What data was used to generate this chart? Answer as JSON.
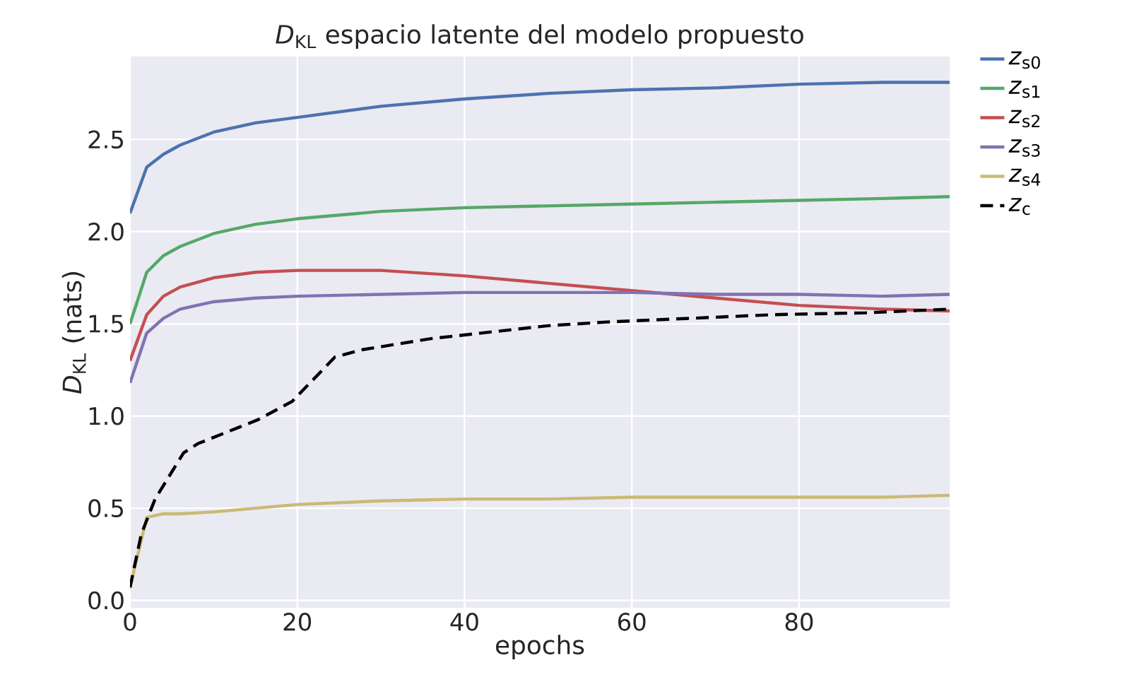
{
  "chart_data": {
    "type": "line",
    "title": "*D*$_{KL}$ espacio latente del modelo propuesto",
    "xlabel": "epochs",
    "ylabel": "*D*$_{KL}$ (nats)",
    "xlim": [
      0,
      98
    ],
    "ylim": [
      -0.04,
      2.95
    ],
    "xticks": [
      0,
      20,
      40,
      60,
      80
    ],
    "yticks": [
      {
        "value": 0,
        "label": "0.0"
      },
      0.5,
      {
        "value": 1,
        "label": "1.0"
      },
      1.5,
      {
        "value": 2,
        "label": "2.0"
      },
      2.5
    ],
    "grid": true,
    "legend": "right",
    "series": [
      {
        "name": "*z*$_{s0}$",
        "color": "#4c72b0",
        "line_style": "solid",
        "x": [
          0,
          2,
          4,
          6,
          10,
          15,
          20,
          30,
          40,
          50,
          60,
          70,
          80,
          90,
          98
        ],
        "values": [
          2.1,
          2.35,
          2.42,
          2.47,
          2.54,
          2.59,
          2.62,
          2.68,
          2.72,
          2.75,
          2.77,
          2.78,
          2.8,
          2.81,
          2.81
        ]
      },
      {
        "name": "*z*$_{s1}$",
        "color": "#55a868",
        "line_style": "solid",
        "x": [
          0,
          2,
          4,
          6,
          10,
          15,
          20,
          30,
          40,
          50,
          60,
          70,
          80,
          90,
          98
        ],
        "values": [
          1.5,
          1.78,
          1.87,
          1.92,
          1.99,
          2.04,
          2.07,
          2.11,
          2.13,
          2.14,
          2.15,
          2.16,
          2.17,
          2.18,
          2.19
        ]
      },
      {
        "name": "*z*$_{s2}$",
        "color": "#c44e52",
        "line_style": "solid",
        "x": [
          0,
          2,
          4,
          6,
          10,
          15,
          20,
          30,
          40,
          50,
          60,
          70,
          80,
          90,
          98
        ],
        "values": [
          1.3,
          1.55,
          1.65,
          1.7,
          1.75,
          1.78,
          1.79,
          1.79,
          1.76,
          1.72,
          1.68,
          1.64,
          1.6,
          1.58,
          1.57
        ]
      },
      {
        "name": "*z*$_{s3}$",
        "color": "#8172b2",
        "line_style": "solid",
        "x": [
          0,
          2,
          4,
          6,
          10,
          15,
          20,
          30,
          40,
          50,
          60,
          70,
          80,
          90,
          98
        ],
        "values": [
          1.18,
          1.45,
          1.53,
          1.58,
          1.62,
          1.64,
          1.65,
          1.66,
          1.67,
          1.67,
          1.67,
          1.66,
          1.66,
          1.65,
          1.66
        ]
      },
      {
        "name": "*z*$_{s4}$",
        "color": "#ccb974",
        "line_style": "solid",
        "x": [
          0,
          2,
          4,
          6,
          10,
          15,
          20,
          30,
          40,
          50,
          60,
          70,
          80,
          90,
          98
        ],
        "values": [
          0.07,
          0.45,
          0.47,
          0.47,
          0.48,
          0.5,
          0.52,
          0.54,
          0.55,
          0.55,
          0.56,
          0.56,
          0.56,
          0.56,
          0.57
        ]
      },
      {
        "name": "*z*$_{c}$",
        "color": "#000000",
        "line_style": "dashed",
        "x": [
          0,
          1.35,
          3,
          6.4,
          8.1,
          15.3,
          19.4,
          24.5,
          27.8,
          36,
          50,
          57,
          77,
          88,
          98
        ],
        "values": [
          0.07,
          0.36,
          0.55,
          0.8,
          0.85,
          0.98,
          1.08,
          1.32,
          1.36,
          1.42,
          1.49,
          1.51,
          1.55,
          1.56,
          1.58
        ]
      }
    ]
  }
}
